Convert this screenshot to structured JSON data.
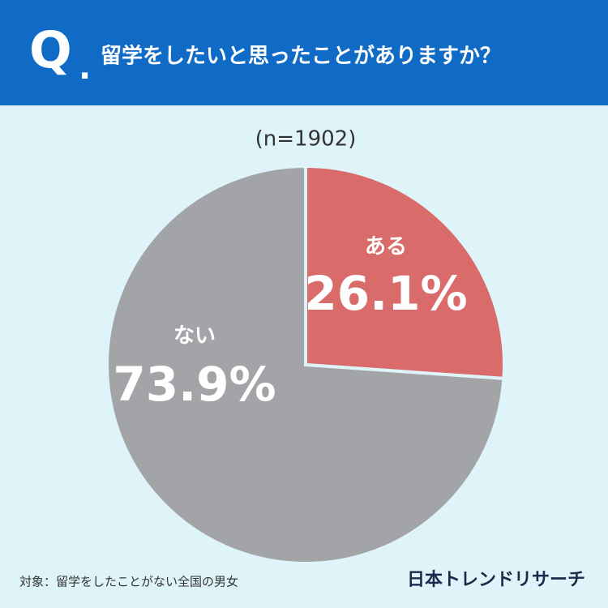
{
  "chart_data": {
    "type": "pie",
    "q_mark": "Q",
    "q_dot": ".",
    "title": "留学をしたいと思ったことがありますか？",
    "subtitle": "(n=1902)",
    "categories": [
      "ある",
      "ない"
    ],
    "values": [
      26.1,
      73.9
    ],
    "value_labels": [
      "26.1%",
      "73.9%"
    ],
    "colors": [
      "#d96b6b",
      "#a3a4a8"
    ],
    "footnote": "対象：留学をしたことがない全国の男女",
    "brand": "日本トレンドリサーチ"
  }
}
